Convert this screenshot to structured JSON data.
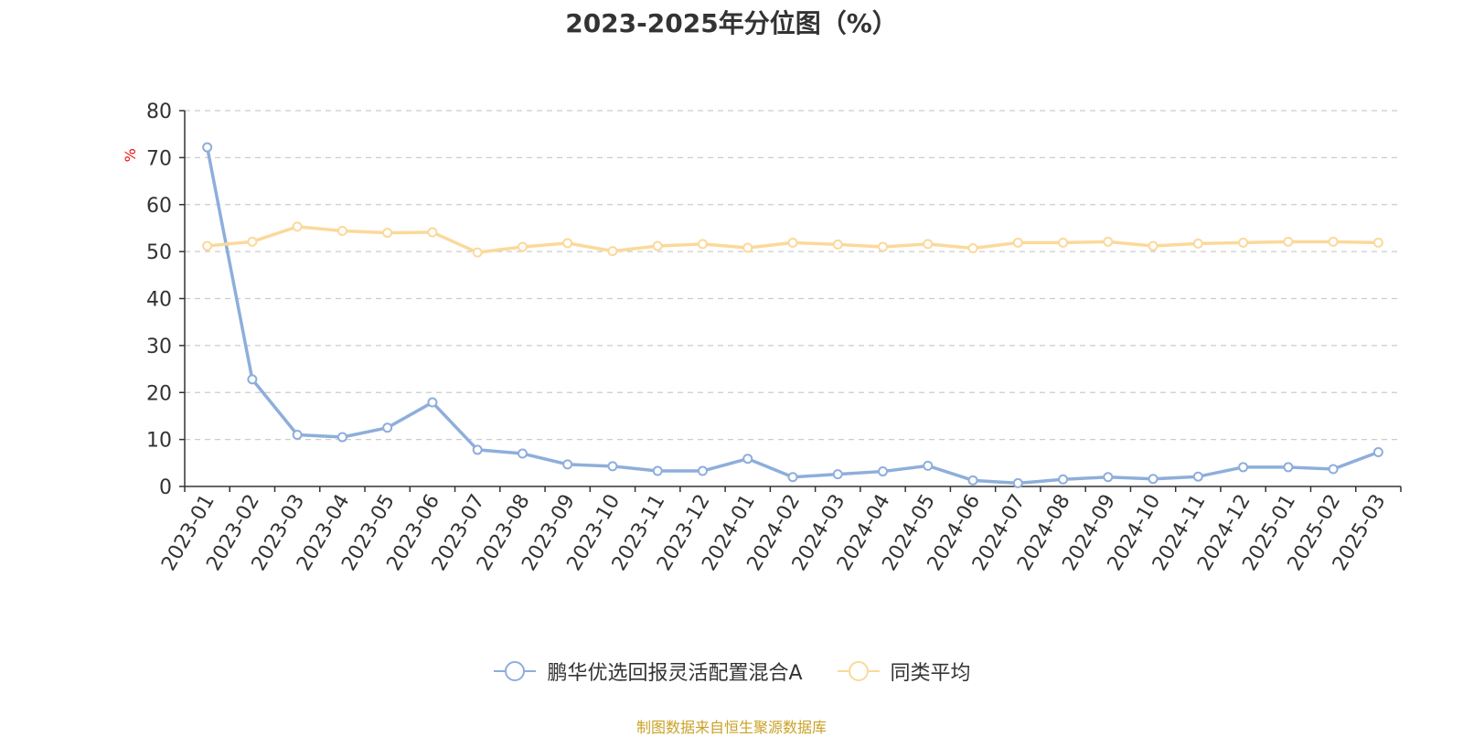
{
  "chart_data": {
    "type": "line",
    "title": "2023-2025年分位图（%）",
    "ylabel": "%",
    "xlabel": "",
    "ylim": [
      0,
      80
    ],
    "yticks": [
      0,
      10,
      20,
      30,
      40,
      50,
      60,
      70,
      80
    ],
    "grid": true,
    "legend_position": "bottom",
    "categories": [
      "2023-01",
      "2023-02",
      "2023-03",
      "2023-04",
      "2023-05",
      "2023-06",
      "2023-07",
      "2023-08",
      "2023-09",
      "2023-10",
      "2023-11",
      "2023-12",
      "2024-01",
      "2024-02",
      "2024-03",
      "2024-04",
      "2024-05",
      "2024-06",
      "2024-07",
      "2024-08",
      "2024-09",
      "2024-10",
      "2024-11",
      "2024-12",
      "2025-01",
      "2025-02",
      "2025-03"
    ],
    "series": [
      {
        "name": "鹏华优选回报灵活配置混合A",
        "color": "#8eaedb",
        "values": [
          72.2,
          22.8,
          11.0,
          10.5,
          12.5,
          17.9,
          7.8,
          7.0,
          4.7,
          4.3,
          3.3,
          3.3,
          5.9,
          2.0,
          2.6,
          3.2,
          4.4,
          1.3,
          0.7,
          1.5,
          2.0,
          1.6,
          2.1,
          4.1,
          4.1,
          3.7,
          7.3
        ]
      },
      {
        "name": "同类平均",
        "color": "#fbd99b",
        "values": [
          51.2,
          52.1,
          55.3,
          54.4,
          54.0,
          54.1,
          49.8,
          51.0,
          51.8,
          50.1,
          51.2,
          51.6,
          50.8,
          51.9,
          51.5,
          51.0,
          51.6,
          50.7,
          51.9,
          51.9,
          52.1,
          51.2,
          51.7,
          51.9,
          52.1,
          52.1,
          51.9
        ]
      }
    ]
  },
  "source_text": "制图数据来自恒生聚源数据库"
}
